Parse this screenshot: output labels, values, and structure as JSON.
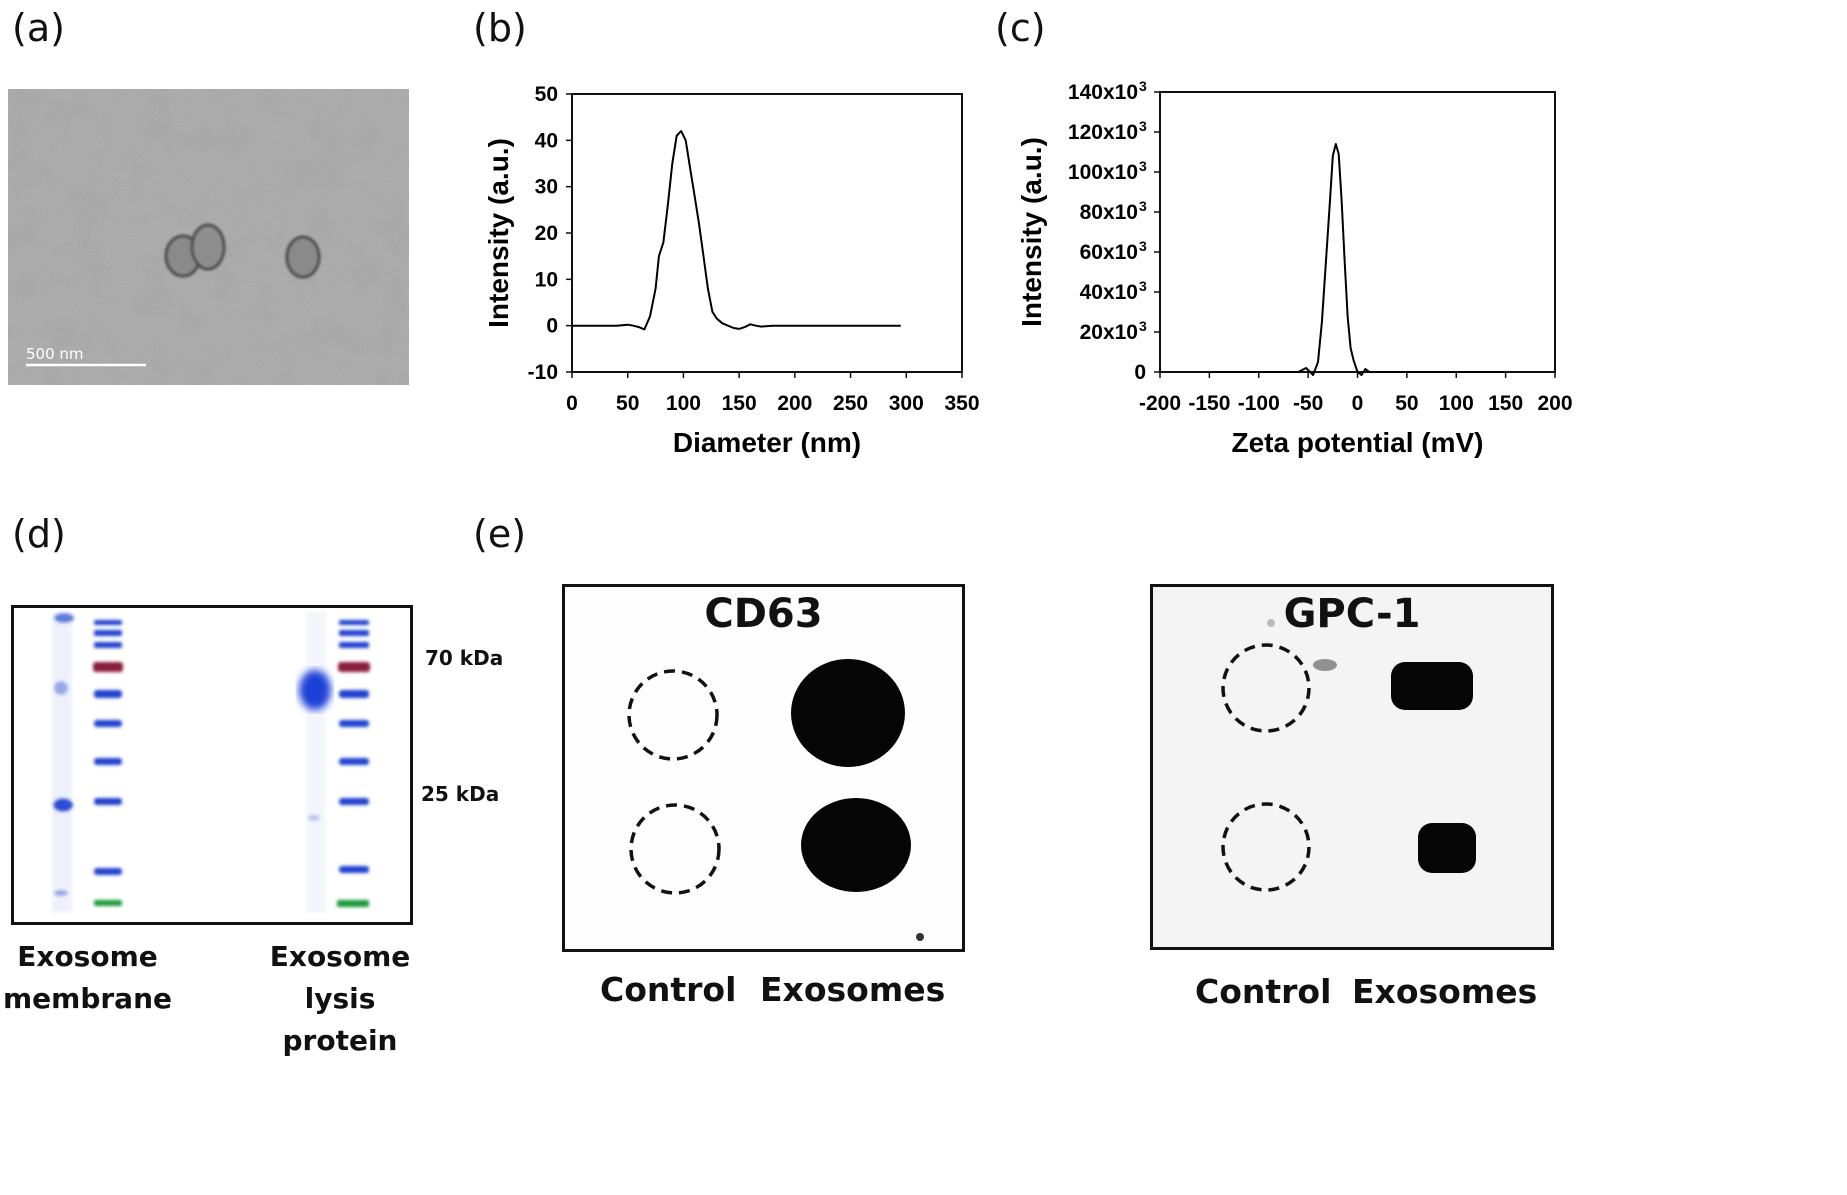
{
  "panels": {
    "a": {
      "letter": "(a)",
      "scale_bar_label": "500 nm"
    },
    "b": {
      "letter": "(b)"
    },
    "c": {
      "letter": "(c)"
    },
    "d": {
      "letter": "(d)",
      "marker_labels": [
        "70 kDa",
        "25 kDa"
      ],
      "lane_labels": [
        [
          "Exosome",
          "membrane"
        ],
        [
          "Exosome",
          "lysis protein"
        ]
      ]
    },
    "e": {
      "letter": "(e)",
      "blots": [
        {
          "title": "CD63",
          "columns": [
            "Control",
            "Exosomes"
          ]
        },
        {
          "title": "GPC-1",
          "columns": [
            "Control",
            "Exosomes"
          ]
        }
      ]
    }
  },
  "chart_data": [
    {
      "type": "line",
      "xlabel": "Diameter (nm)",
      "ylabel": "Intensity (a.u.)",
      "xlim": [
        0,
        350
      ],
      "ylim": [
        -10,
        50
      ],
      "xticks": [
        "0",
        "50",
        "100",
        "150",
        "200",
        "250",
        "300",
        "350"
      ],
      "yticks": [
        "-10",
        "0",
        "10",
        "20",
        "30",
        "40",
        "50"
      ],
      "x": [
        0,
        20,
        40,
        50,
        55,
        60,
        65,
        70,
        75,
        78,
        82,
        86,
        90,
        94,
        98,
        102,
        106,
        110,
        114,
        118,
        122,
        126,
        130,
        135,
        140,
        145,
        150,
        155,
        160,
        165,
        170,
        180,
        200,
        250,
        295
      ],
      "y": [
        0,
        0,
        0,
        0.2,
        0,
        -0.3,
        -0.8,
        2,
        8,
        15,
        18,
        26,
        35,
        41,
        42,
        40,
        34,
        28,
        22,
        15,
        8,
        3,
        1.5,
        0.5,
        0,
        -0.5,
        -0.7,
        -0.3,
        0.3,
        0,
        -0.2,
        0,
        0,
        0,
        0
      ]
    },
    {
      "type": "line",
      "xlabel": "Zeta potential (mV)",
      "ylabel": "Intensity (a.u.)",
      "xlim": [
        -200,
        200
      ],
      "ylim": [
        0,
        140000
      ],
      "xticks": [
        "-200",
        "-150",
        "-100",
        "-50",
        "0",
        "50",
        "100",
        "150",
        "200"
      ],
      "yticks": [
        "0",
        "20x10",
        "40x10",
        "60x10",
        "80x10",
        "100x10",
        "120x10",
        "140x10"
      ],
      "ytick_exponent": "3",
      "x": [
        -150,
        -100,
        -60,
        -52,
        -48,
        -45,
        -40,
        -36,
        -32,
        -28,
        -25,
        -22,
        -19,
        -16,
        -13,
        -10,
        -7,
        -4,
        0,
        4,
        8,
        12,
        20,
        50,
        100,
        150
      ],
      "y": [
        0,
        0,
        0,
        2000,
        0,
        -1500,
        5000,
        25000,
        55000,
        85000,
        108000,
        114000,
        109000,
        85000,
        55000,
        28000,
        12000,
        6000,
        0,
        -1500,
        1500,
        0,
        0,
        0,
        0,
        0
      ]
    }
  ]
}
